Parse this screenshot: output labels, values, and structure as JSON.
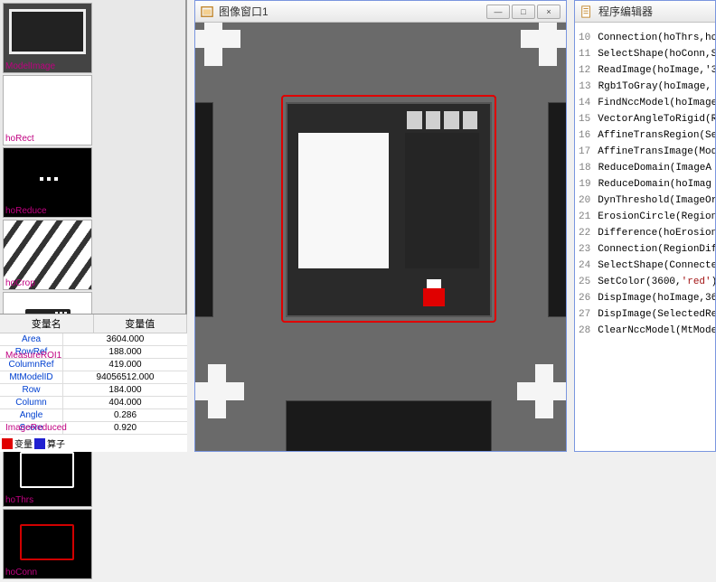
{
  "thumbnails": [
    {
      "name": "ModelImage",
      "bg": "grid"
    },
    {
      "name": "hoRect",
      "bg": "white"
    },
    {
      "name": "hoReduce",
      "bg": "black-dots"
    },
    {
      "name": "hoCrop",
      "bg": "diag"
    },
    {
      "name": "MeasureROI1",
      "bg": "roi"
    },
    {
      "name": "ImageReduced",
      "bg": "chip-dark"
    },
    {
      "name": "hoThrs",
      "bg": "thrs"
    },
    {
      "name": "hoConn",
      "bg": "conn"
    }
  ],
  "var_table": {
    "header_name": "变量名",
    "header_val": "变量值",
    "rows": [
      {
        "name": "Area",
        "val": "3604.000"
      },
      {
        "name": "RowRef",
        "val": "188.000"
      },
      {
        "name": "ColumnRef",
        "val": "419.000"
      },
      {
        "name": "MtModelID",
        "val": "94056512.000"
      },
      {
        "name": "Row",
        "val": "184.000"
      },
      {
        "name": "Column",
        "val": "404.000"
      },
      {
        "name": "Angle",
        "val": "0.286"
      },
      {
        "name": "Score",
        "val": "0.920"
      }
    ],
    "legend1": "变量",
    "legend2": "算子",
    "legend1_color": "#e00000",
    "legend2_color": "#2020d0"
  },
  "image_window": {
    "title": "图像窗口1"
  },
  "editor": {
    "title": "程序编辑器",
    "lines": [
      {
        "n": 10,
        "t": "Connection(hoThrs,hoCo"
      },
      {
        "n": 11,
        "t": "SelectShape(hoConn,Se"
      },
      {
        "n": 12,
        "t": "ReadImage(hoImage,'3"
      },
      {
        "n": 13,
        "t": "Rgb1ToGray(hoImage,"
      },
      {
        "n": 14,
        "t": "FindNccModel(hoImage,"
      },
      {
        "n": 15,
        "t": "VectorAngleToRigid(Ro"
      },
      {
        "n": 16,
        "t": "AffineTransRegion(Sele"
      },
      {
        "n": 17,
        "t": "AffineTransImage(Mode"
      },
      {
        "n": 18,
        "t": "ReduceDomain(ImageA"
      },
      {
        "n": 19,
        "t": "ReduceDomain(hoImag"
      },
      {
        "n": 20,
        "t": "DynThreshold(ImageOri"
      },
      {
        "n": 21,
        "t": "ErosionCircle(RegionAffi"
      },
      {
        "n": 22,
        "t": "Difference(hoErosion, h"
      },
      {
        "n": 23,
        "t": "Connection(RegionDiffer"
      },
      {
        "n": 24,
        "t": "SelectShape(Connected"
      },
      {
        "n": 25,
        "t": "SetColor(3600,'red')"
      },
      {
        "n": 26,
        "t": "DispImage(hoImage,36"
      },
      {
        "n": 27,
        "t": "DispImage(SelectedReg"
      },
      {
        "n": 28,
        "t": "ClearNccModel(MtModel"
      }
    ]
  }
}
